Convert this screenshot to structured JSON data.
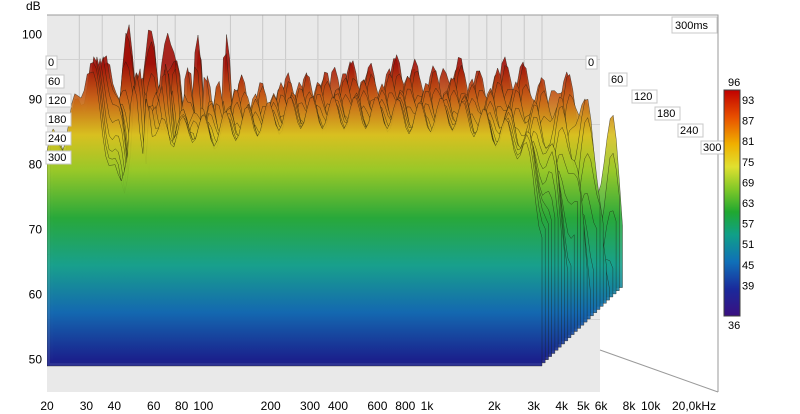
{
  "chart_data": {
    "type": "waterfall",
    "ylabel": "dB",
    "time_label": "300ms",
    "y_ticks": [
      "100",
      "90",
      "80",
      "70",
      "60",
      "50"
    ],
    "y_range": [
      45,
      103
    ],
    "x_ticks": [
      {
        "v": 20,
        "label": "20"
      },
      {
        "v": 30,
        "label": "30"
      },
      {
        "v": 40,
        "label": "40"
      },
      {
        "v": 60,
        "label": "60"
      },
      {
        "v": 80,
        "label": "80"
      },
      {
        "v": 100,
        "label": "100"
      },
      {
        "v": 200,
        "label": "200"
      },
      {
        "v": 300,
        "label": "300"
      },
      {
        "v": 400,
        "label": "400"
      },
      {
        "v": 600,
        "label": "600"
      },
      {
        "v": 800,
        "label": "800"
      },
      {
        "v": 1000,
        "label": "1k"
      },
      {
        "v": 2000,
        "label": "2k"
      },
      {
        "v": 3000,
        "label": "3k"
      },
      {
        "v": 4000,
        "label": "4k"
      },
      {
        "v": 5000,
        "label": "5k"
      },
      {
        "v": 6000,
        "label": "6k"
      },
      {
        "v": 8000,
        "label": "8k"
      },
      {
        "v": 10000,
        "label": "10k"
      },
      {
        "v": 20000,
        "label": "20,0kHz"
      }
    ],
    "x_range_hz": [
      20,
      20000
    ],
    "x_scale": "log",
    "time_ticks_ms": [
      "0",
      "60",
      "120",
      "180",
      "240",
      "300"
    ],
    "colorbar_ticks": [
      "96",
      "93",
      "87",
      "81",
      "75",
      "69",
      "63",
      "57",
      "51",
      "45",
      "39",
      "36"
    ],
    "colorbar_colors": [
      "#b40000",
      "#e84000",
      "#f0a000",
      "#e8e000",
      "#a8d830",
      "#2cb030",
      "#18a090",
      "#1070b8",
      "#1828a0",
      "#3c1080"
    ],
    "front_response": {
      "freq_hz": [
        20,
        25,
        30,
        33,
        36,
        40,
        45,
        50,
        55,
        58,
        62,
        66,
        70,
        75,
        80,
        90,
        100,
        120,
        150,
        200,
        300,
        400,
        500,
        700,
        1000,
        1500,
        2000,
        3000,
        4000,
        5000,
        6000,
        7000,
        8000,
        9000,
        10000
      ],
      "db": [
        82,
        85,
        90,
        96,
        92,
        86,
        80,
        75,
        84,
        94,
        88,
        78,
        94,
        86,
        83,
        87,
        84,
        86,
        85,
        86,
        87,
        88,
        88,
        88,
        88,
        88,
        87,
        88,
        87,
        86,
        85,
        84,
        82,
        78,
        70
      ]
    },
    "floor_db": 49
  }
}
